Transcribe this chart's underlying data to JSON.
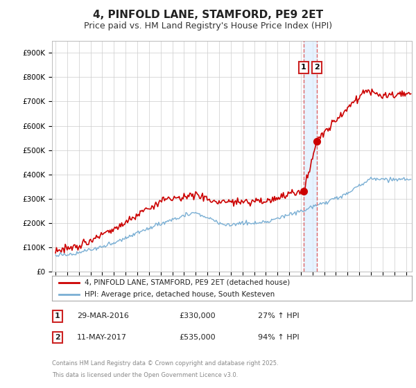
{
  "title": "4, PINFOLD LANE, STAMFORD, PE9 2ET",
  "subtitle": "Price paid vs. HM Land Registry's House Price Index (HPI)",
  "ylim": [
    0,
    950000
  ],
  "yticks": [
    0,
    100000,
    200000,
    300000,
    400000,
    500000,
    600000,
    700000,
    800000,
    900000
  ],
  "ytick_labels": [
    "£0",
    "£100K",
    "£200K",
    "£300K",
    "£400K",
    "£500K",
    "£600K",
    "£700K",
    "£800K",
    "£900K"
  ],
  "xlim_start": 1994.7,
  "xlim_end": 2025.5,
  "sale1_date": 2016.24,
  "sale1_price": 330000,
  "sale1_label": "1",
  "sale1_text": "29-MAR-2016",
  "sale1_price_str": "£330,000",
  "sale1_pct": "27% ↑ HPI",
  "sale2_date": 2017.36,
  "sale2_price": 535000,
  "sale2_label": "2",
  "sale2_text": "11-MAY-2017",
  "sale2_price_str": "£535,000",
  "sale2_pct": "94% ↑ HPI",
  "red_line_color": "#cc0000",
  "blue_line_color": "#7aafd4",
  "dashed_line_color": "#dd6666",
  "shade_color": "#ddeeff",
  "legend_label1": "4, PINFOLD LANE, STAMFORD, PE9 2ET (detached house)",
  "legend_label2": "HPI: Average price, detached house, South Kesteven",
  "footer1": "Contains HM Land Registry data © Crown copyright and database right 2025.",
  "footer2": "This data is licensed under the Open Government Licence v3.0.",
  "background_color": "#ffffff",
  "grid_color": "#cccccc",
  "title_fontsize": 11,
  "subtitle_fontsize": 9
}
